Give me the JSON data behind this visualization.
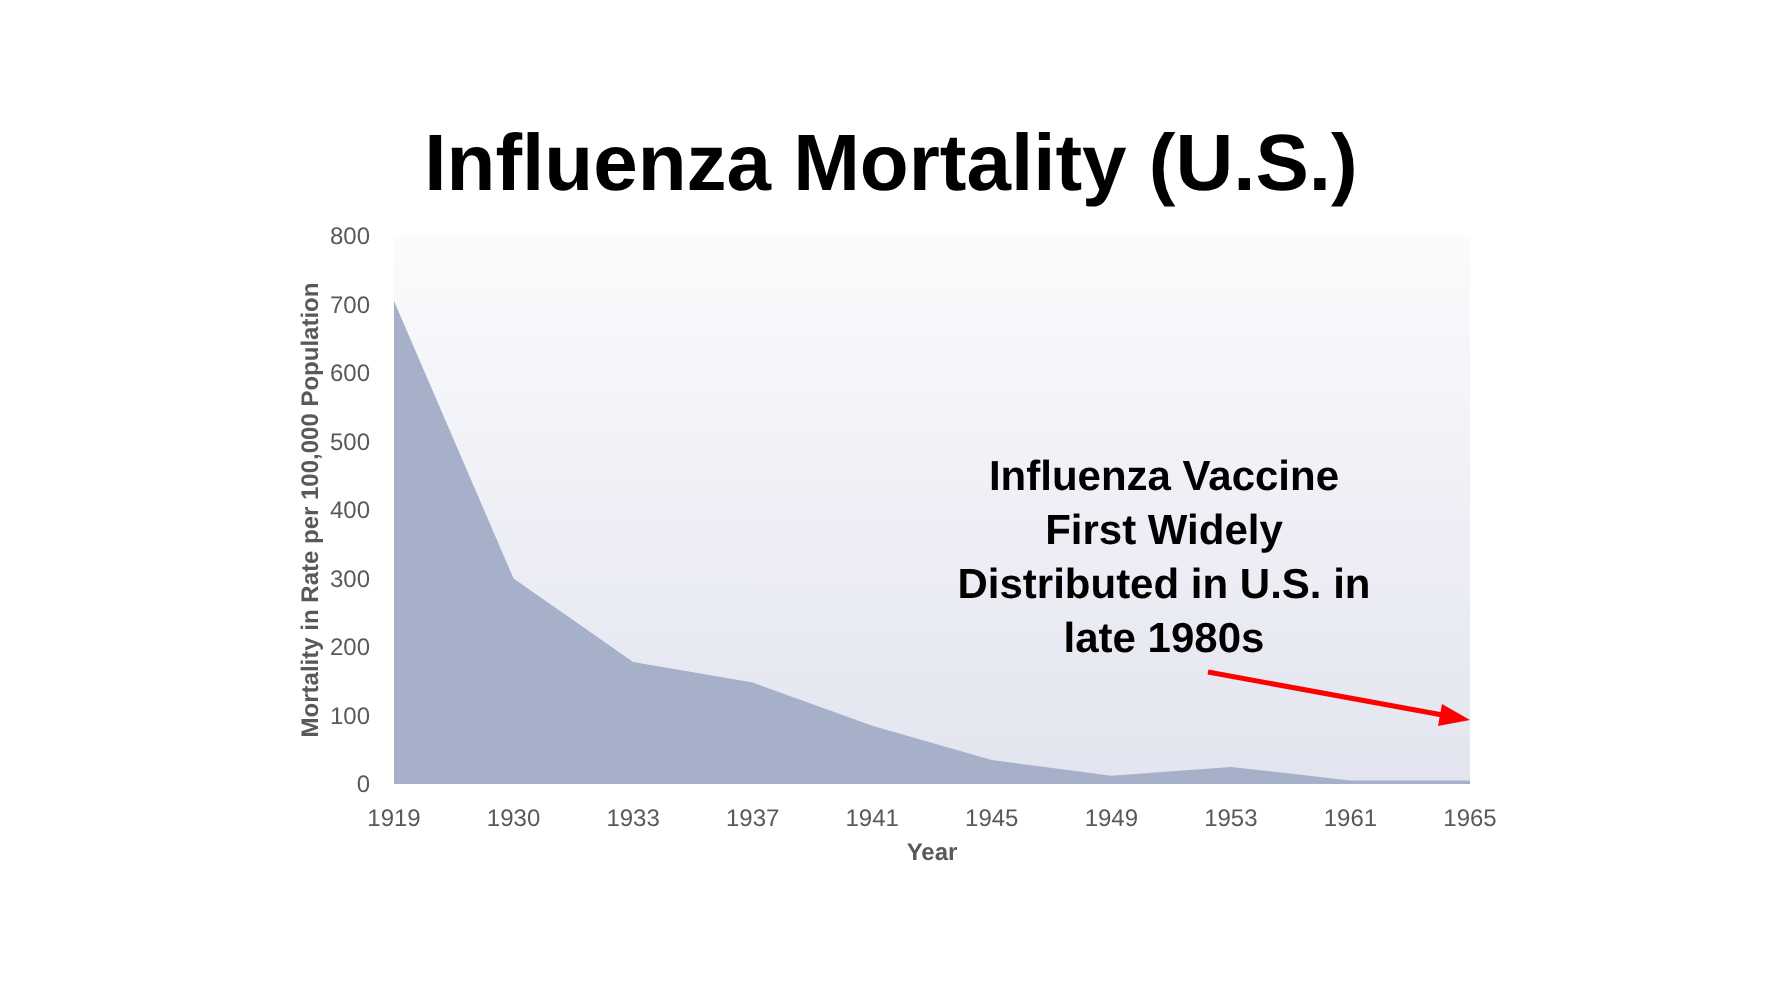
{
  "chart_data": {
    "type": "area",
    "title": "Influenza Mortality (U.S.)",
    "xlabel": "Year",
    "ylabel": "Mortality in Rate per 100,000 Population",
    "categories": [
      "1919",
      "1930",
      "1933",
      "1937",
      "1941",
      "1945",
      "1949",
      "1953",
      "1961",
      "1965"
    ],
    "values": [
      705,
      300,
      178,
      148,
      85,
      35,
      12,
      25,
      5,
      5
    ],
    "color": "#a7b0c9",
    "ylim": [
      0,
      800
    ],
    "yticks": [
      0,
      100,
      200,
      300,
      400,
      500,
      600,
      700,
      800
    ],
    "grid": false,
    "annotations": [
      "Influenza Vaccine First Widely Distributed in U.S. in late 1980s"
    ]
  }
}
